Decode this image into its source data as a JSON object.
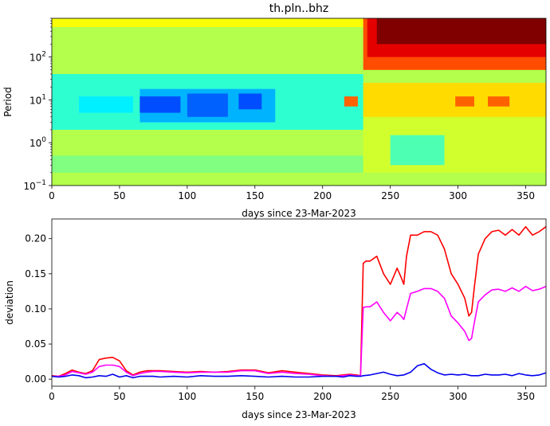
{
  "chart_data": [
    {
      "type": "heatmap",
      "title": "th.pln..bhz",
      "xlabel": "days since 23-Mar-2023",
      "ylabel": "Period",
      "xlim": [
        0,
        365
      ],
      "ylim": [
        0.1,
        800
      ],
      "yscale": "log",
      "xticks": [
        "0",
        "50",
        "100",
        "150",
        "200",
        "250",
        "300",
        "350"
      ],
      "yticks": [
        {
          "base": "10",
          "exp": "−1"
        },
        {
          "base": "10",
          "exp": "0"
        },
        {
          "base": "10",
          "exp": "1"
        },
        {
          "base": "10",
          "exp": "2"
        }
      ],
      "colormap": "jet",
      "regions": [
        {
          "x": [
            0,
            365
          ],
          "period": [
            0.1,
            800
          ],
          "level": 0.55
        },
        {
          "x": [
            0,
            230
          ],
          "period": [
            0.2,
            0.5
          ],
          "level": 0.5
        },
        {
          "x": [
            0,
            230
          ],
          "period": [
            2,
            40
          ],
          "level": 0.42
        },
        {
          "x": [
            20,
            60
          ],
          "period": [
            5,
            12
          ],
          "level": 0.36
        },
        {
          "x": [
            65,
            165
          ],
          "period": [
            3,
            18
          ],
          "level": 0.3
        },
        {
          "x": [
            65,
            95
          ],
          "period": [
            5,
            12
          ],
          "level": 0.2
        },
        {
          "x": [
            100,
            130
          ],
          "period": [
            4,
            14
          ],
          "level": 0.22
        },
        {
          "x": [
            138,
            155
          ],
          "period": [
            6,
            14
          ],
          "level": 0.2
        },
        {
          "x": [
            230,
            365
          ],
          "period": [
            0.2,
            5
          ],
          "level": 0.58
        },
        {
          "x": [
            250,
            290
          ],
          "period": [
            0.3,
            1.5
          ],
          "level": 0.45
        },
        {
          "x": [
            230,
            365
          ],
          "period": [
            4,
            25
          ],
          "level": 0.66
        },
        {
          "x": [
            216,
            226
          ],
          "period": [
            7,
            12
          ],
          "level": 0.78
        },
        {
          "x": [
            298,
            312
          ],
          "period": [
            7,
            12
          ],
          "level": 0.78
        },
        {
          "x": [
            322,
            338
          ],
          "period": [
            7,
            12
          ],
          "level": 0.78
        },
        {
          "x": [
            30,
            58
          ],
          "period": [
            600,
            800
          ],
          "level": 0.8
        },
        {
          "x": [
            0,
            230
          ],
          "period": [
            500,
            800
          ],
          "level": 0.62
        },
        {
          "x": [
            230,
            365
          ],
          "period": [
            50,
            800
          ],
          "level": 0.8
        },
        {
          "x": [
            233,
            365
          ],
          "period": [
            100,
            800
          ],
          "level": 0.9
        },
        {
          "x": [
            240,
            365
          ],
          "period": [
            200,
            800
          ],
          "level": 1.0
        }
      ]
    },
    {
      "type": "line",
      "xlabel": "days since 23-Mar-2023",
      "ylabel": "deviation",
      "xlim": [
        0,
        365
      ],
      "ylim": [
        -0.01,
        0.228
      ],
      "xticks": [
        "0",
        "50",
        "100",
        "150",
        "200",
        "250",
        "300",
        "350"
      ],
      "yticks": [
        "0.00",
        "0.05",
        "0.10",
        "0.15",
        "0.20"
      ],
      "series": [
        {
          "color": "#ff0000",
          "x": [
            0,
            5,
            10,
            15,
            20,
            25,
            30,
            35,
            40,
            45,
            50,
            55,
            60,
            65,
            70,
            75,
            80,
            90,
            100,
            110,
            120,
            130,
            140,
            150,
            160,
            170,
            180,
            190,
            200,
            210,
            215,
            220,
            225,
            228,
            230,
            232,
            235,
            240,
            245,
            250,
            255,
            258,
            260,
            262,
            265,
            270,
            275,
            280,
            285,
            290,
            295,
            300,
            305,
            308,
            310,
            312,
            315,
            320,
            325,
            330,
            335,
            340,
            345,
            350,
            355,
            360,
            365
          ],
          "y": [
            0.005,
            0.004,
            0.008,
            0.013,
            0.01,
            0.008,
            0.012,
            0.028,
            0.03,
            0.031,
            0.026,
            0.012,
            0.006,
            0.01,
            0.012,
            0.012,
            0.012,
            0.011,
            0.01,
            0.011,
            0.01,
            0.011,
            0.013,
            0.013,
            0.009,
            0.012,
            0.01,
            0.008,
            0.006,
            0.005,
            0.006,
            0.007,
            0.006,
            0.005,
            0.165,
            0.168,
            0.168,
            0.175,
            0.15,
            0.135,
            0.158,
            0.145,
            0.135,
            0.175,
            0.205,
            0.205,
            0.21,
            0.21,
            0.205,
            0.185,
            0.15,
            0.135,
            0.115,
            0.09,
            0.095,
            0.13,
            0.178,
            0.2,
            0.21,
            0.212,
            0.205,
            0.213,
            0.205,
            0.217,
            0.205,
            0.21,
            0.217
          ]
        },
        {
          "color": "#ff00ff",
          "x": [
            0,
            5,
            10,
            15,
            20,
            25,
            30,
            35,
            40,
            45,
            50,
            55,
            60,
            65,
            70,
            75,
            80,
            90,
            100,
            110,
            120,
            130,
            140,
            150,
            160,
            170,
            180,
            190,
            200,
            210,
            215,
            220,
            225,
            228,
            230,
            232,
            235,
            240,
            245,
            250,
            255,
            258,
            260,
            262,
            265,
            270,
            275,
            280,
            285,
            290,
            295,
            300,
            305,
            308,
            310,
            312,
            315,
            320,
            325,
            330,
            335,
            340,
            345,
            350,
            355,
            360,
            365
          ],
          "y": [
            0.004,
            0.004,
            0.006,
            0.011,
            0.009,
            0.007,
            0.01,
            0.018,
            0.02,
            0.02,
            0.018,
            0.01,
            0.005,
            0.008,
            0.01,
            0.011,
            0.011,
            0.01,
            0.009,
            0.01,
            0.01,
            0.01,
            0.012,
            0.012,
            0.008,
            0.01,
            0.008,
            0.007,
            0.005,
            0.004,
            0.005,
            0.006,
            0.005,
            0.005,
            0.102,
            0.103,
            0.103,
            0.11,
            0.095,
            0.083,
            0.095,
            0.09,
            0.085,
            0.1,
            0.122,
            0.125,
            0.129,
            0.129,
            0.125,
            0.115,
            0.09,
            0.08,
            0.068,
            0.055,
            0.058,
            0.08,
            0.11,
            0.12,
            0.127,
            0.128,
            0.125,
            0.13,
            0.125,
            0.132,
            0.126,
            0.128,
            0.132
          ]
        },
        {
          "color": "#0000ee",
          "x": [
            0,
            5,
            10,
            15,
            20,
            25,
            30,
            35,
            40,
            45,
            50,
            55,
            60,
            65,
            70,
            75,
            80,
            90,
            100,
            110,
            120,
            130,
            140,
            150,
            160,
            170,
            180,
            190,
            200,
            210,
            215,
            220,
            225,
            228,
            230,
            235,
            240,
            245,
            250,
            255,
            260,
            265,
            270,
            275,
            280,
            285,
            290,
            295,
            300,
            305,
            310,
            315,
            320,
            325,
            330,
            335,
            340,
            345,
            350,
            355,
            360,
            365
          ],
          "y": [
            0.004,
            0.003,
            0.004,
            0.006,
            0.005,
            0.002,
            0.003,
            0.005,
            0.004,
            0.007,
            0.003,
            0.005,
            0.002,
            0.004,
            0.004,
            0.004,
            0.003,
            0.004,
            0.003,
            0.005,
            0.004,
            0.004,
            0.005,
            0.004,
            0.003,
            0.004,
            0.003,
            0.003,
            0.004,
            0.004,
            0.003,
            0.005,
            0.004,
            0.004,
            0.005,
            0.006,
            0.008,
            0.01,
            0.007,
            0.005,
            0.006,
            0.01,
            0.019,
            0.022,
            0.014,
            0.009,
            0.006,
            0.007,
            0.006,
            0.007,
            0.005,
            0.005,
            0.007,
            0.006,
            0.006,
            0.007,
            0.005,
            0.008,
            0.006,
            0.005,
            0.006,
            0.009
          ]
        }
      ]
    }
  ]
}
